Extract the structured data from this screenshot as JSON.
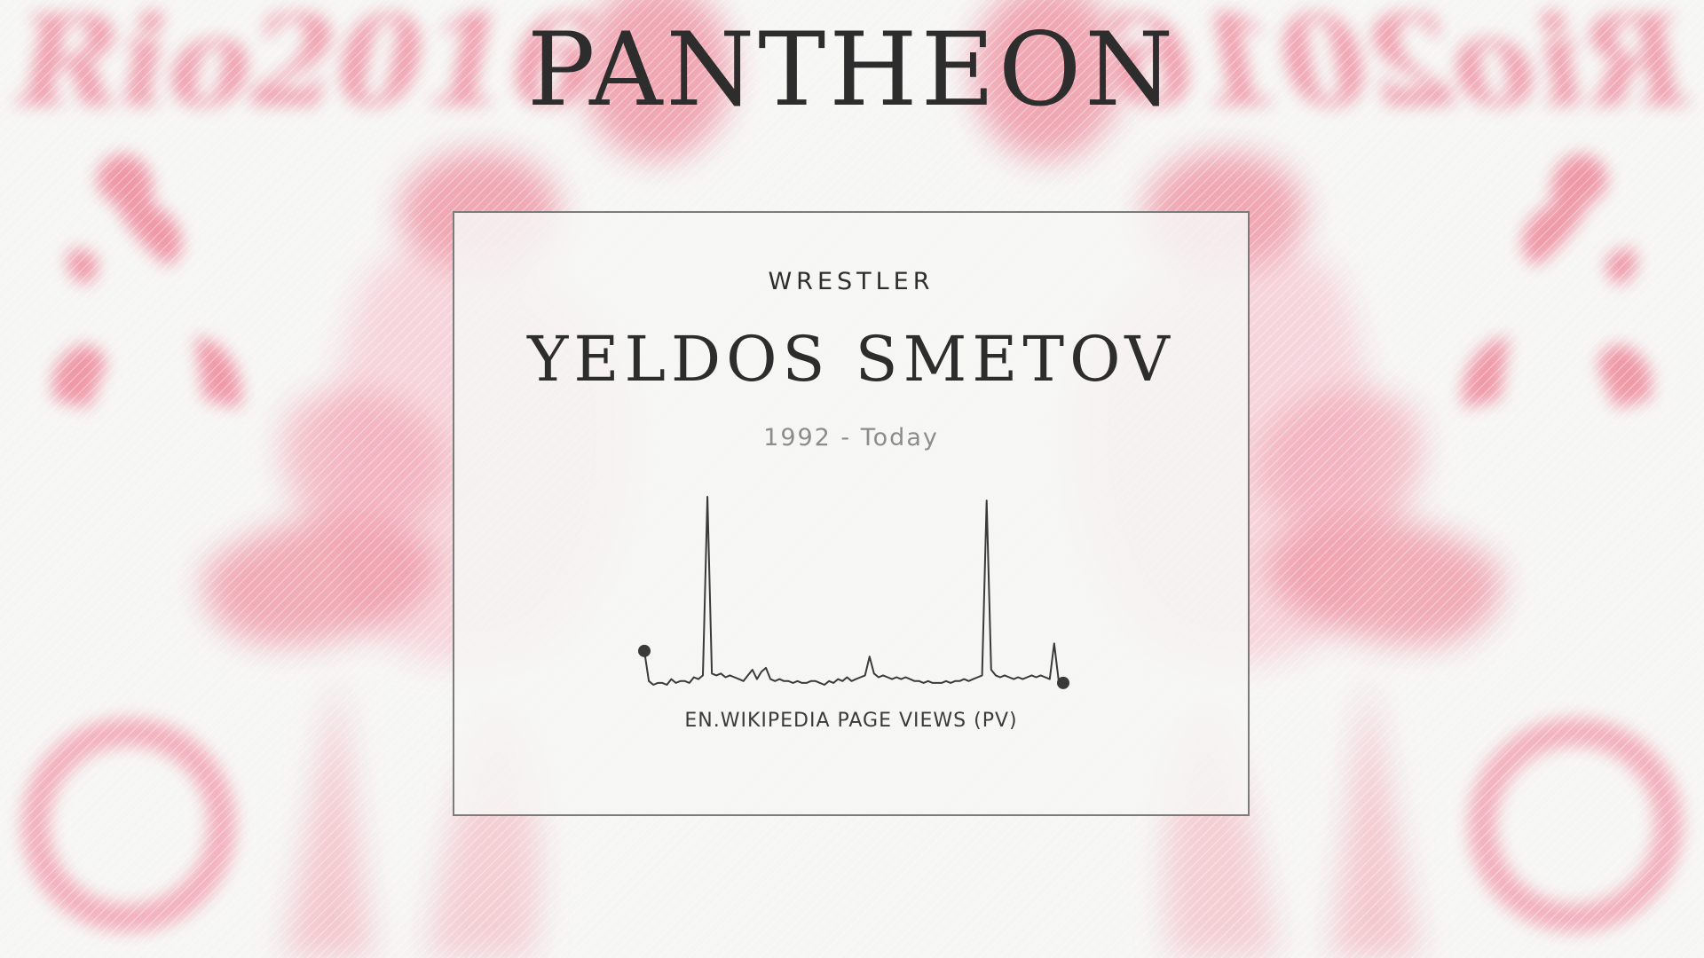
{
  "header": {
    "brand": "PANTHEON"
  },
  "background": {
    "logo_text": "Rio2016",
    "accent_color": "#f4a4b4"
  },
  "profile": {
    "occupation": "WRESTLER",
    "name": "YELDOS SMETOV",
    "lifespan": "1992 - Today"
  },
  "chart_data": {
    "type": "line",
    "xlabel": "EN.WIKIPEDIA PAGE VIEWS (PV)",
    "series": [
      {
        "values": [
          18,
          2,
          0,
          1,
          1,
          0,
          3,
          1,
          2,
          2,
          1,
          4,
          3,
          5,
          100,
          6,
          5,
          6,
          4,
          5,
          4,
          3,
          2,
          5,
          8,
          3,
          7,
          9,
          3,
          2,
          3,
          2,
          2,
          1,
          2,
          1,
          1,
          2,
          2,
          1,
          0,
          2,
          1,
          3,
          2,
          4,
          2,
          3,
          4,
          5,
          15,
          6,
          4,
          5,
          4,
          3,
          4,
          3,
          4,
          3,
          2,
          2,
          1,
          2,
          1,
          1,
          1,
          2,
          1,
          2,
          2,
          3,
          2,
          3,
          4,
          5,
          98,
          8,
          5,
          4,
          5,
          4,
          3,
          4,
          3,
          4,
          5,
          4,
          5,
          4,
          3,
          22,
          2,
          1
        ]
      }
    ]
  }
}
